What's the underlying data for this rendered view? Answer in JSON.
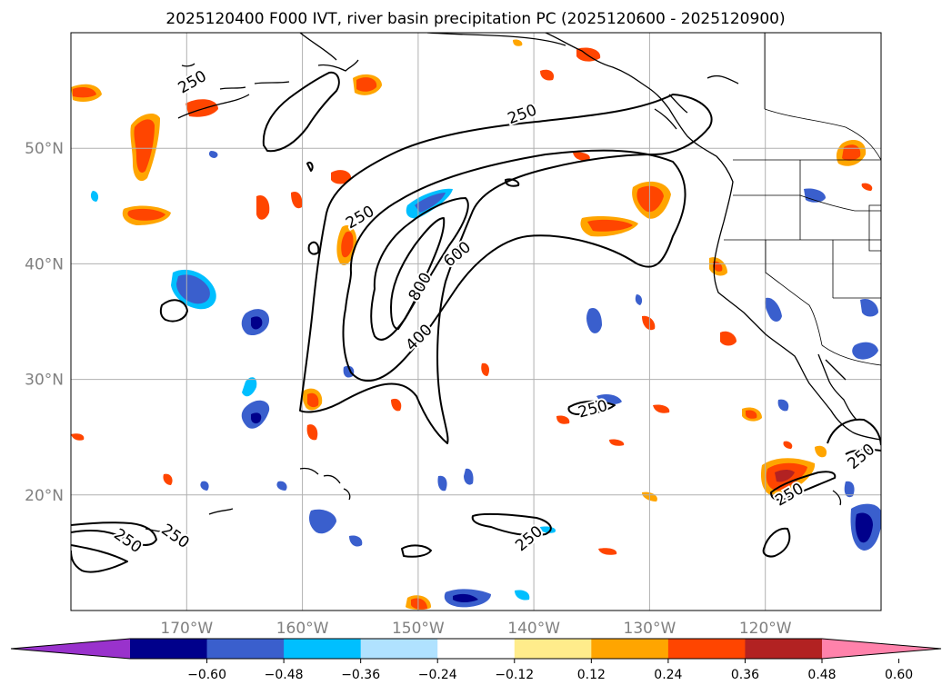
{
  "title": "2025120400 F000 IVT, river basin precipitation PC (2025120600 - 2025120900)",
  "map": {
    "lon_range": [
      -180,
      -110
    ],
    "lat_range": [
      10,
      60
    ],
    "lat_labels": [
      {
        "lat": 50,
        "text": "50°N"
      },
      {
        "lat": 40,
        "text": "40°N"
      },
      {
        "lat": 30,
        "text": "30°N"
      },
      {
        "lat": 20,
        "text": "20°N"
      }
    ],
    "lon_labels": [
      {
        "lon": -170,
        "text": "170°W"
      },
      {
        "lon": -160,
        "text": "160°W"
      },
      {
        "lon": -150,
        "text": "150°W"
      },
      {
        "lon": -140,
        "text": "140°W"
      },
      {
        "lon": -130,
        "text": "130°W"
      },
      {
        "lon": -120,
        "text": "120°W"
      }
    ],
    "grid_color": "#b0b0b0",
    "contour_labels": [
      {
        "text": "250",
        "lon": -169.5,
        "lat": 55.7,
        "rot": -30
      },
      {
        "text": "250",
        "lon": -141.0,
        "lat": 52.9,
        "rot": -20
      },
      {
        "text": "250",
        "lon": -155.0,
        "lat": 44.0,
        "rot": -30
      },
      {
        "text": "600",
        "lon": -146.6,
        "lat": 40.8,
        "rot": -40
      },
      {
        "text": "800",
        "lon": -149.8,
        "lat": 38.0,
        "rot": -60
      },
      {
        "text": "400",
        "lon": -149.9,
        "lat": 33.6,
        "rot": -45
      },
      {
        "text": "250",
        "lon": -134.9,
        "lat": 27.4,
        "rot": -15
      },
      {
        "text": "250",
        "lon": -175.1,
        "lat": 16.0,
        "rot": 35
      },
      {
        "text": "250",
        "lon": -171.0,
        "lat": 16.4,
        "rot": 35
      },
      {
        "text": "250",
        "lon": -140.4,
        "lat": 16.2,
        "rot": -40
      },
      {
        "text": "250",
        "lon": -117.9,
        "lat": 20.0,
        "rot": -30
      },
      {
        "text": "250",
        "lon": -111.7,
        "lat": 23.3,
        "rot": -40
      }
    ]
  },
  "colorbar": {
    "ticks": [
      "−0.60",
      "−0.48",
      "−0.36",
      "−0.24",
      "−0.12",
      "0.12",
      "0.24",
      "0.36",
      "0.48",
      "0.60"
    ],
    "colors": [
      "#9932cc",
      "#00008b",
      "#3a5fcd",
      "#00bfff",
      "#b0e2ff",
      "#ffffff",
      "#ffec8b",
      "#ffa500",
      "#ff4500",
      "#b22222",
      "#ff82ab"
    ],
    "extend": "both"
  }
}
